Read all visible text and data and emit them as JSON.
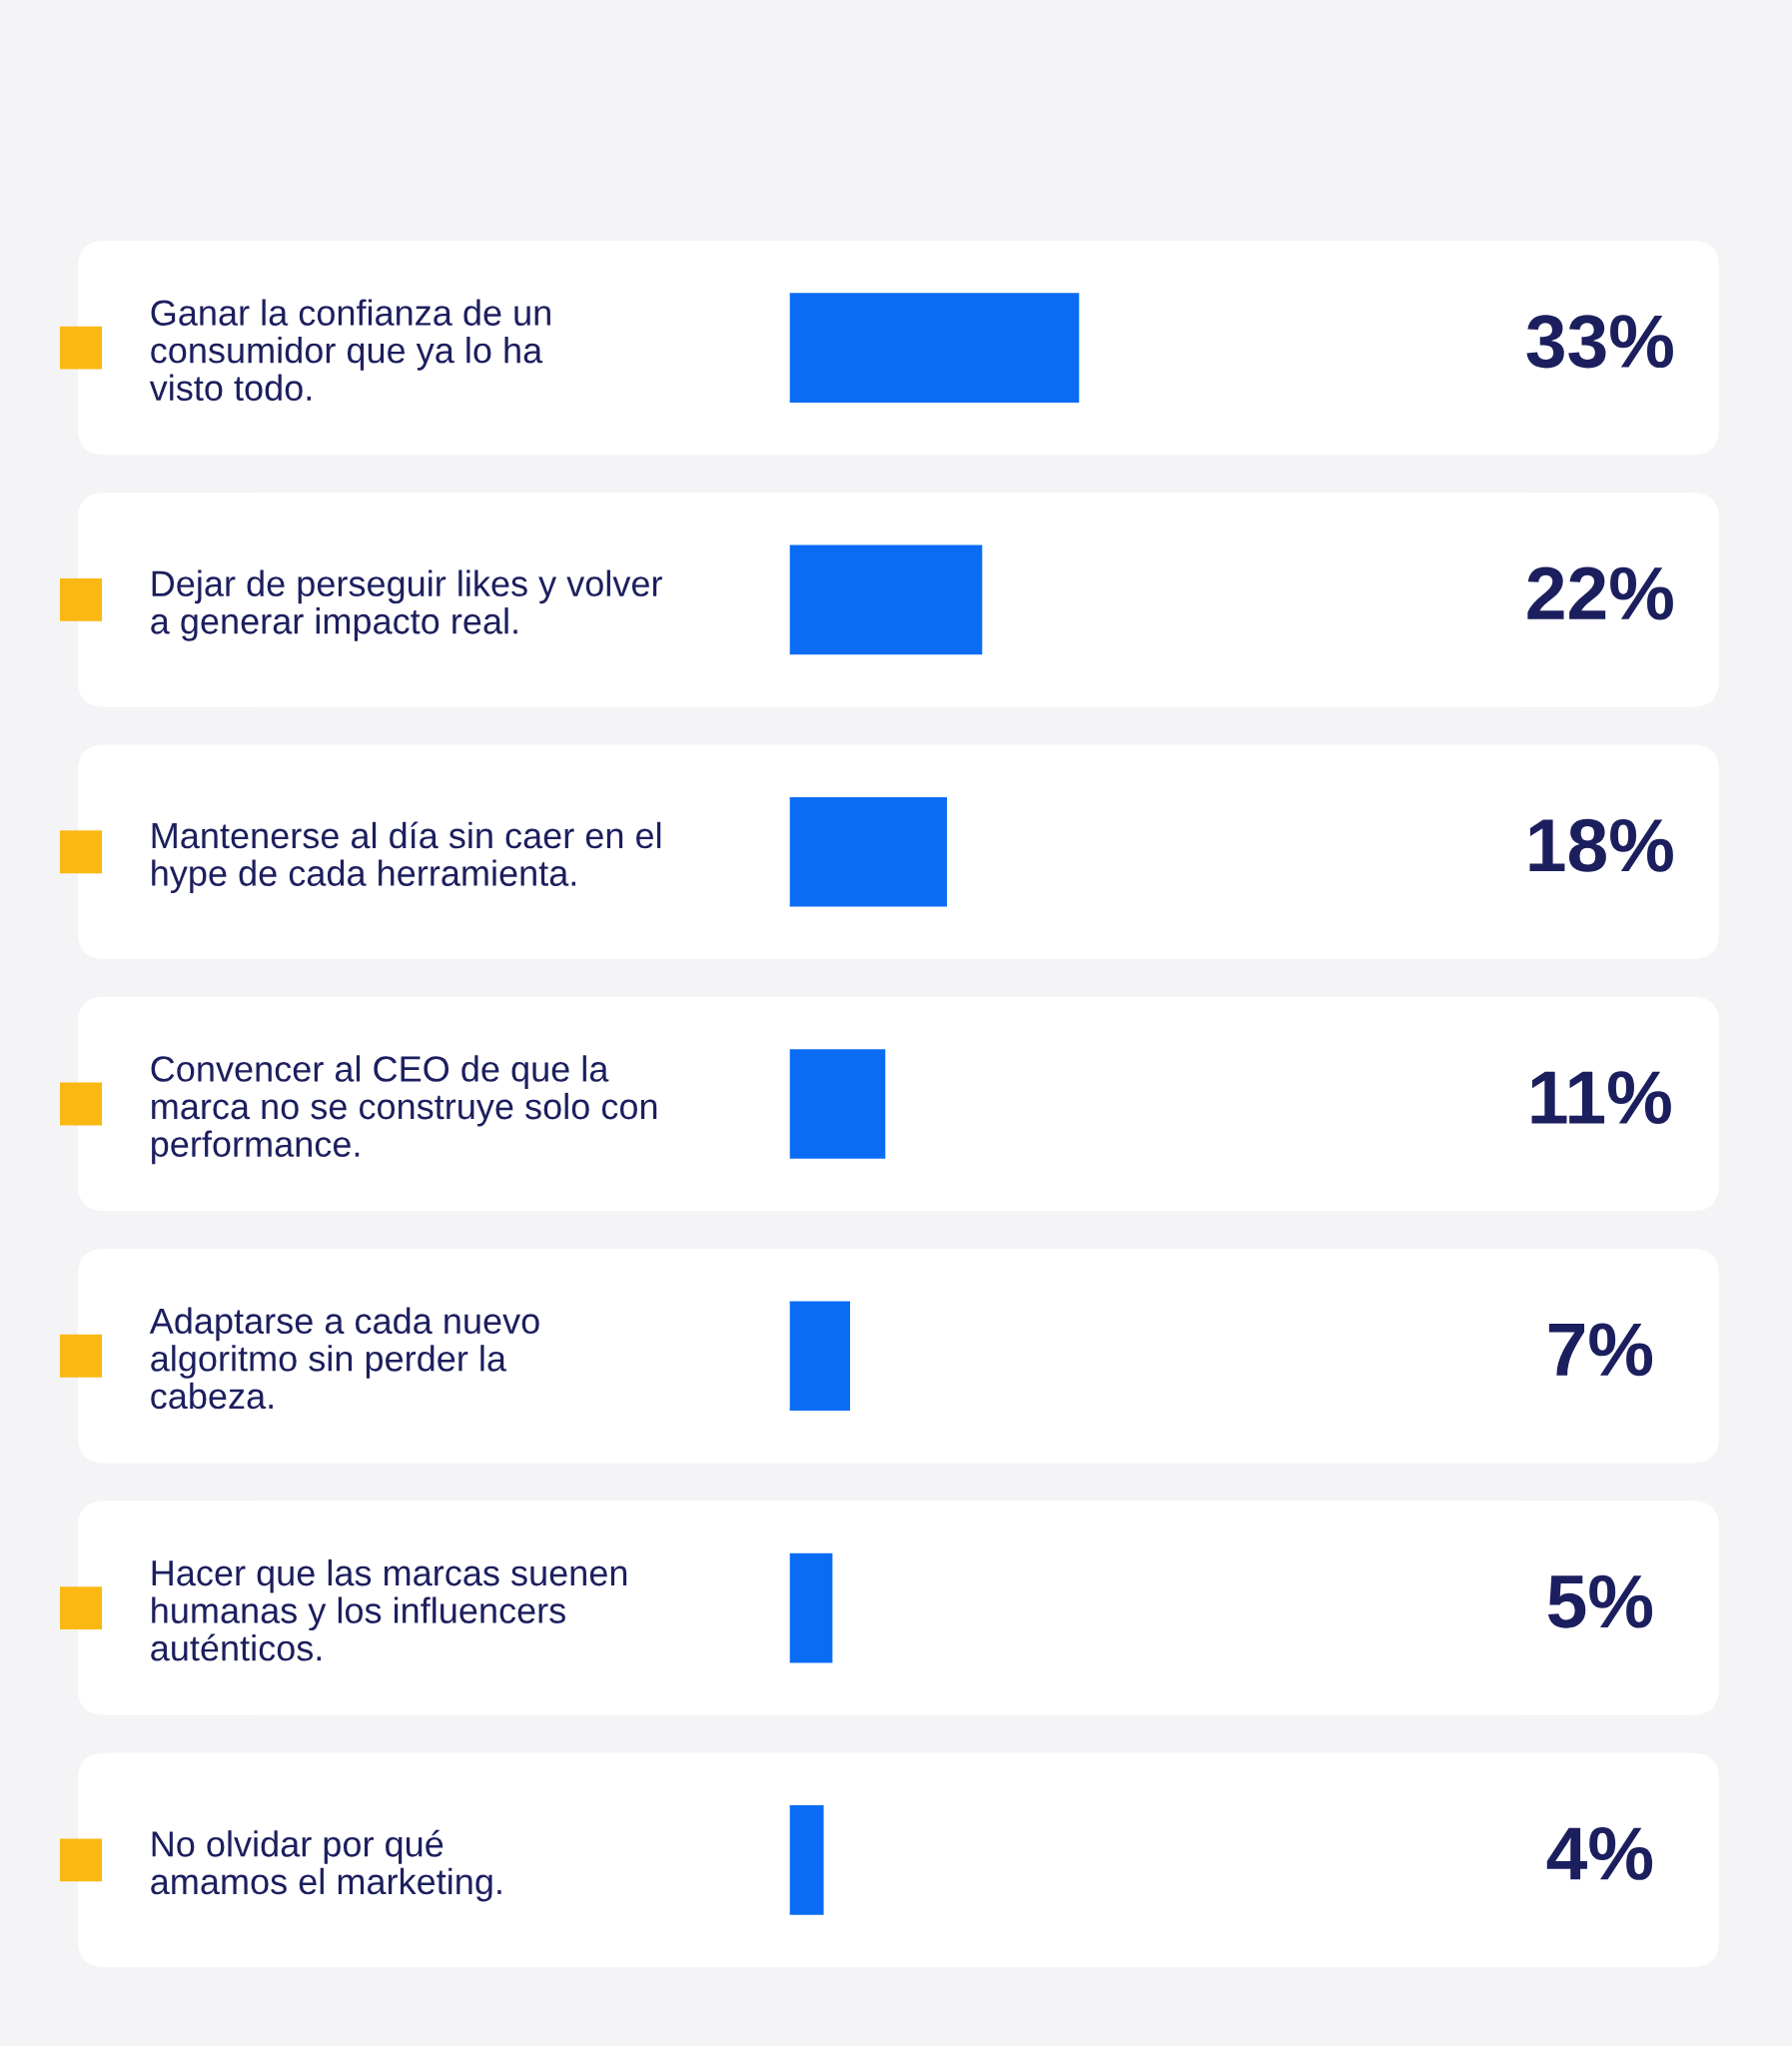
{
  "chart_data": {
    "type": "bar",
    "orientation": "horizontal",
    "categories": [
      "Ganar la confianza de un\nconsumidor que ya lo ha\nvisto todo.",
      "Dejar de perseguir likes y volver\na generar impacto real.",
      "Mantenerse al día sin caer en el\nhype de cada herramienta.",
      "Convencer al CEO de que la\nmarca no se construye solo con\nperformance.",
      "Adaptarse a cada nuevo\nalgoritmo sin perder la\ncabeza.",
      "Hacer que las marcas suenen\nhumanas y los influencers\nauténticos.",
      "No olvidar por qué\namamos el marketing."
    ],
    "values": [
      33,
      22,
      18,
      11,
      7,
      5,
      4
    ],
    "value_labels": [
      "33%",
      "22%",
      "18%",
      "11%",
      "7%",
      "5%",
      "4%"
    ],
    "color": "#0a6cf5",
    "tick_labels": "y"
  }
}
